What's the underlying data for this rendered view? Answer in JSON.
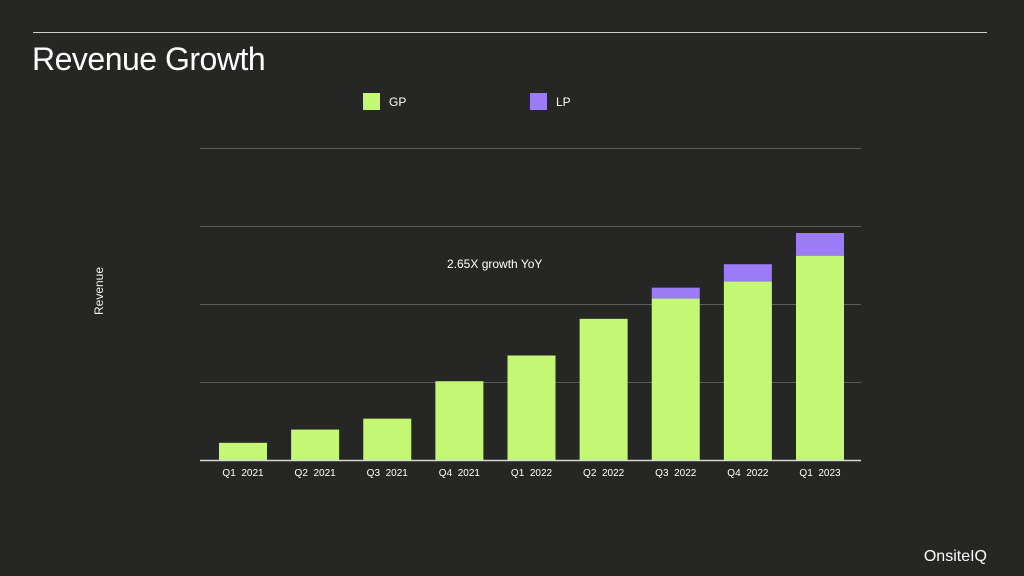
{
  "slide": {
    "title": "Revenue Growth",
    "brand": "OnsiteIQ"
  },
  "colors": {
    "background": "#262724",
    "gp": "#c3f774",
    "lp": "#9b7cf6",
    "grid": "#5a5b58",
    "axis": "#d8d8d8"
  },
  "chart_data": {
    "type": "bar",
    "stacked": true,
    "title": "",
    "xlabel": "",
    "ylabel": "Revenue",
    "ylim": [
      0,
      4
    ],
    "grid": true,
    "legend_position": "top",
    "categories": [
      "Q1  2021",
      "Q2  2021",
      "Q3  2021",
      "Q4  2021",
      "Q1  2022",
      "Q2  2022",
      "Q3  2022",
      "Q4  2022",
      "Q1  2023"
    ],
    "series": [
      {
        "name": "GP",
        "values": [
          0.22,
          0.39,
          0.53,
          1.01,
          1.34,
          1.81,
          2.07,
          2.29,
          2.62
        ]
      },
      {
        "name": "LP",
        "values": [
          0,
          0,
          0,
          0,
          0,
          0,
          0.14,
          0.22,
          0.29
        ]
      }
    ],
    "annotations": [
      {
        "text": "2.65X growth YoY"
      }
    ]
  }
}
